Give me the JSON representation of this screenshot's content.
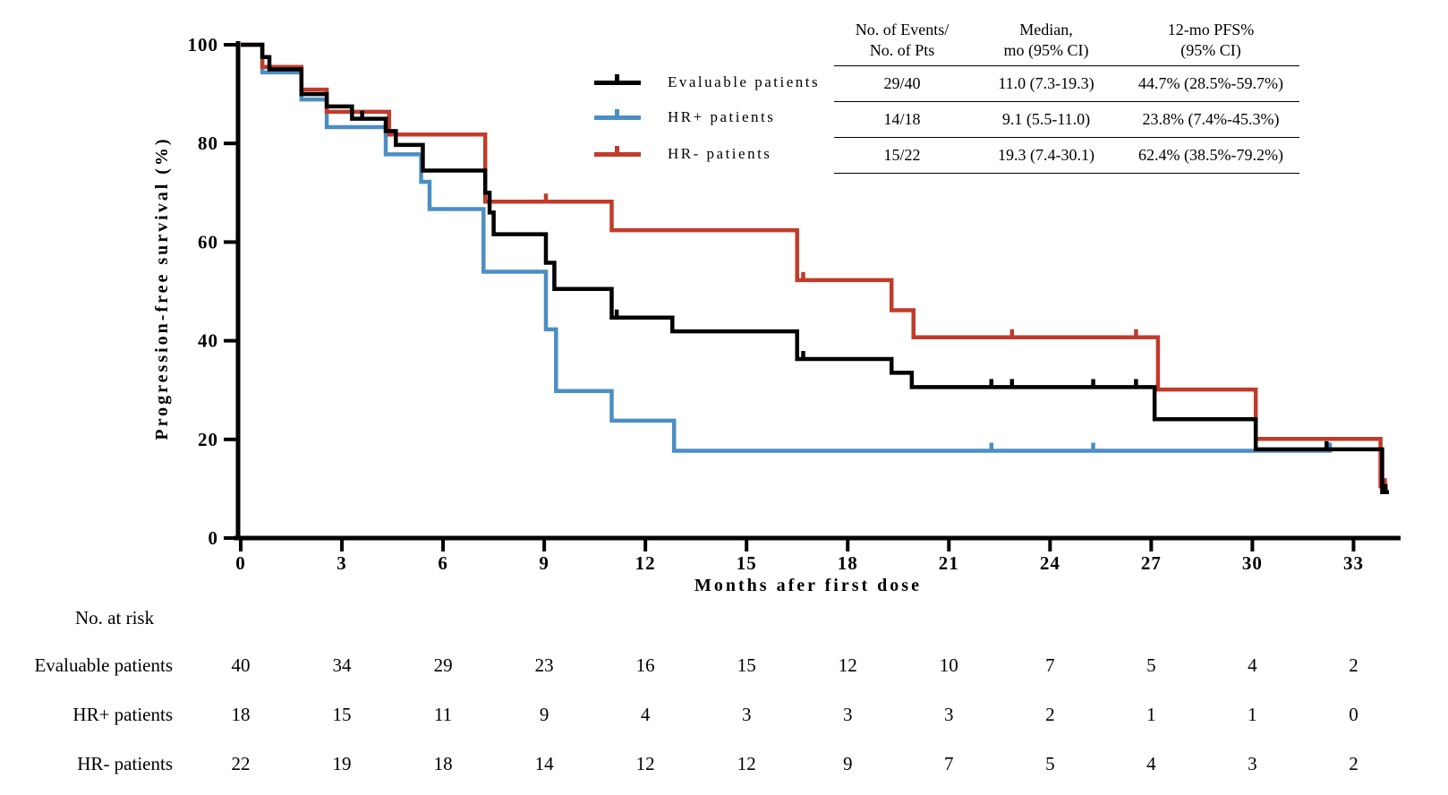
{
  "chart_data": {
    "type": "line",
    "subtype": "kaplan-meier-step",
    "title": "",
    "xlabel": "Months afer first dose",
    "ylabel": "Progression-free survival (%)",
    "xlim": [
      0,
      34.5
    ],
    "ylim": [
      0,
      100
    ],
    "x_ticks": [
      0,
      3,
      6,
      9,
      12,
      15,
      18,
      21,
      24,
      27,
      30,
      33
    ],
    "y_ticks": [
      0,
      20,
      40,
      60,
      80,
      100
    ],
    "grid": false,
    "legend_position": "top-center-left-of-stats-table",
    "series": [
      {
        "name": "Evaluable patients",
        "color": "#000000",
        "steps": [
          [
            0,
            100
          ],
          [
            0.64,
            97.5
          ],
          [
            0.85,
            95
          ],
          [
            1.8,
            90
          ],
          [
            2.55,
            87.5
          ],
          [
            3.3,
            85
          ],
          [
            4.3,
            82.5
          ],
          [
            4.6,
            79.7
          ],
          [
            5.4,
            74.5
          ],
          [
            7.25,
            70
          ],
          [
            7.38,
            66
          ],
          [
            7.5,
            61.6
          ],
          [
            9.05,
            55.8
          ],
          [
            9.3,
            50.5
          ],
          [
            11.0,
            44.7
          ],
          [
            12.8,
            41.9
          ],
          [
            16.5,
            36.3
          ],
          [
            19.3,
            33.5
          ],
          [
            19.9,
            30.6
          ],
          [
            27.1,
            24.1
          ],
          [
            30.1,
            18.0
          ],
          [
            33.85,
            9.3
          ]
        ],
        "end": 34.05,
        "censors": [
          [
            3.6,
            85
          ],
          [
            11.15,
            44.7
          ],
          [
            16.68,
            36.3
          ],
          [
            22.26,
            30.6
          ],
          [
            22.87,
            30.6
          ],
          [
            25.28,
            30.6
          ],
          [
            26.55,
            30.6
          ],
          [
            32.2,
            18.0
          ],
          [
            33.95,
            9.3
          ]
        ]
      },
      {
        "name": "HR+ patients",
        "color": "#4b8ec4",
        "steps": [
          [
            0,
            100
          ],
          [
            0.64,
            94.4
          ],
          [
            1.8,
            88.9
          ],
          [
            2.55,
            83.3
          ],
          [
            4.3,
            77.8
          ],
          [
            5.35,
            72.2
          ],
          [
            5.6,
            66.7
          ],
          [
            7.2,
            54.0
          ],
          [
            9.05,
            42.3
          ],
          [
            9.35,
            29.8
          ],
          [
            11.0,
            23.8
          ],
          [
            12.85,
            17.7
          ]
        ],
        "end": 32.35,
        "censors": [
          [
            22.26,
            17.7
          ],
          [
            25.28,
            17.7
          ],
          [
            32.3,
            17.7
          ]
        ]
      },
      {
        "name": "HR- patients",
        "color": "#c23b2a",
        "steps": [
          [
            0,
            100
          ],
          [
            0.64,
            95.5
          ],
          [
            1.8,
            90.9
          ],
          [
            2.55,
            86.4
          ],
          [
            4.4,
            81.8
          ],
          [
            7.25,
            68.2
          ],
          [
            11.0,
            62.4
          ],
          [
            16.5,
            52.3
          ],
          [
            19.3,
            46.2
          ],
          [
            19.95,
            40.7
          ],
          [
            27.2,
            30.1
          ],
          [
            30.1,
            20.1
          ],
          [
            33.8,
            10.5
          ]
        ],
        "end": 34.0,
        "censors": [
          [
            9.05,
            68.2
          ],
          [
            16.68,
            52.3
          ],
          [
            22.87,
            40.7
          ],
          [
            26.55,
            40.7
          ],
          [
            33.93,
            10.5
          ]
        ]
      }
    ],
    "stats_table": {
      "headers": [
        [
          "No. of Events/",
          "No. of Pts"
        ],
        [
          "Median,",
          "mo (95% CI)"
        ],
        [
          "12-mo PFS%",
          "(95% CI)"
        ]
      ],
      "rows": [
        [
          "29/40",
          "11.0 (7.3-19.3)",
          "44.7% (28.5%-59.7%)"
        ],
        [
          "14/18",
          "9.1 (5.5-11.0)",
          "23.8% (7.4%-45.3%)"
        ],
        [
          "15/22",
          "19.3 (7.4-30.1)",
          "62.4% (38.5%-79.2%)"
        ]
      ]
    },
    "risk_table": {
      "title": "No. at risk",
      "months": [
        0,
        3,
        6,
        9,
        12,
        15,
        18,
        21,
        24,
        27,
        30,
        33
      ],
      "rows": [
        {
          "label": "Evaluable patients",
          "values": [
            40,
            34,
            29,
            23,
            16,
            15,
            12,
            10,
            7,
            5,
            4,
            2
          ]
        },
        {
          "label": "HR+ patients",
          "values": [
            18,
            15,
            11,
            9,
            4,
            3,
            3,
            3,
            2,
            1,
            1,
            0
          ]
        },
        {
          "label": "HR- patients",
          "values": [
            22,
            19,
            18,
            14,
            12,
            12,
            9,
            7,
            5,
            4,
            3,
            2
          ]
        }
      ]
    }
  }
}
